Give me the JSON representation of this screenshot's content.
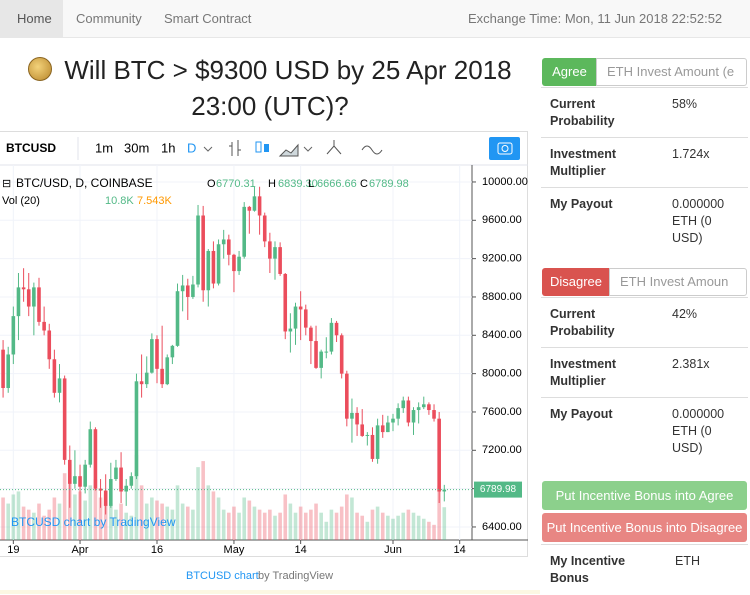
{
  "nav": {
    "items": [
      "Home",
      "Community",
      "Smart Contract"
    ],
    "exchange_time": "Exchange Time: Mon, 11 Jun 2018 22:52:52"
  },
  "question": "Will BTC > $9300 USD by 25 Apr 2018 23:00 (UTC)?",
  "widget": {
    "symbol": "BTCUSD",
    "intervals": [
      "1m",
      "30m",
      "1h",
      "D"
    ],
    "credit": "BTCUSD chart",
    "credit_by": "by TradingView"
  },
  "chart_data": {
    "type": "candlestick",
    "title": "BTC/USD, D, COINBASE",
    "ohlc_letters": [
      "O",
      "H",
      "L",
      "C"
    ],
    "last_labels": [
      "6770.31",
      "6839.30",
      "6666.66",
      "6789.98"
    ],
    "volume_title": "Vol (20)",
    "volume_labels": [
      "10.8K",
      "7.543K"
    ],
    "watermark": "BTCUSD chart by TradingView",
    "up_color": "#53b987",
    "down_color": "#eb4d5c",
    "candles": [
      [
        8250,
        8350,
        7750,
        7850
      ],
      [
        7850,
        8280,
        7800,
        8200
      ],
      [
        8200,
        8700,
        8100,
        8600
      ],
      [
        8600,
        9050,
        8350,
        8900
      ],
      [
        8900,
        9100,
        8750,
        8880
      ],
      [
        8880,
        9050,
        8600,
        8700
      ],
      [
        8700,
        8950,
        8400,
        8900
      ],
      [
        8900,
        9000,
        8500,
        8540
      ],
      [
        8540,
        8700,
        8400,
        8450
      ],
      [
        8450,
        8520,
        8050,
        8150
      ],
      [
        8150,
        8250,
        7750,
        7800
      ],
      [
        7800,
        8100,
        7700,
        7950
      ],
      [
        7950,
        7980,
        7050,
        7100
      ],
      [
        7100,
        7250,
        6600,
        6850
      ],
      [
        6850,
        7200,
        6800,
        6930
      ],
      [
        6930,
        7050,
        6450,
        6820
      ],
      [
        6820,
        7100,
        6750,
        7050
      ],
      [
        7050,
        7500,
        7020,
        7420
      ],
      [
        7420,
        7440,
        6780,
        6800
      ],
      [
        6800,
        6900,
        6600,
        6780
      ],
      [
        6780,
        6950,
        6530,
        6620
      ],
      [
        6620,
        7070,
        6600,
        6900
      ],
      [
        6900,
        7100,
        6880,
        7020
      ],
      [
        7020,
        7180,
        6650,
        6770
      ],
      [
        6770,
        6900,
        6620,
        6830
      ],
      [
        6830,
        6970,
        6800,
        6930
      ],
      [
        6930,
        8000,
        6900,
        7920
      ],
      [
        7920,
        8200,
        7750,
        7890
      ],
      [
        7890,
        8180,
        7850,
        8010
      ],
      [
        8010,
        8420,
        8000,
        8360
      ],
      [
        8360,
        8400,
        7900,
        8050
      ],
      [
        8050,
        8500,
        7850,
        7890
      ],
      [
        7890,
        8200,
        7880,
        8170
      ],
      [
        8170,
        8300,
        8100,
        8290
      ],
      [
        8290,
        8940,
        8280,
        8860
      ],
      [
        8860,
        9030,
        8650,
        8920
      ],
      [
        8920,
        8990,
        8560,
        8800
      ],
      [
        8800,
        9020,
        8780,
        8930
      ],
      [
        8930,
        9760,
        8900,
        9650
      ],
      [
        9650,
        9750,
        8750,
        8870
      ],
      [
        8870,
        9300,
        8700,
        9280
      ],
      [
        9280,
        9380,
        8890,
        8940
      ],
      [
        8940,
        9400,
        8920,
        9350
      ],
      [
        9350,
        9500,
        9200,
        9400
      ],
      [
        9400,
        9450,
        9130,
        9240
      ],
      [
        9240,
        9250,
        8850,
        9070
      ],
      [
        9070,
        9280,
        9030,
        9220
      ],
      [
        9220,
        9790,
        9200,
        9740
      ],
      [
        9740,
        9750,
        9460,
        9700
      ],
      [
        9700,
        9950,
        9690,
        9850
      ],
      [
        9850,
        9950,
        9450,
        9650
      ],
      [
        9650,
        9680,
        9320,
        9380
      ],
      [
        9380,
        9470,
        9050,
        9200
      ],
      [
        9200,
        9380,
        8980,
        9320
      ],
      [
        9320,
        9370,
        9020,
        9040
      ],
      [
        9040,
        9050,
        8360,
        8440
      ],
      [
        8440,
        8630,
        8220,
        8470
      ],
      [
        8470,
        8740,
        8300,
        8700
      ],
      [
        8700,
        8860,
        8350,
        8670
      ],
      [
        8670,
        8720,
        8400,
        8480
      ],
      [
        8480,
        8500,
        8100,
        8340
      ],
      [
        8340,
        8500,
        8050,
        8060
      ],
      [
        8060,
        8250,
        7950,
        8230
      ],
      [
        8230,
        8380,
        8160,
        8230
      ],
      [
        8230,
        8580,
        8200,
        8530
      ],
      [
        8530,
        8550,
        8330,
        8400
      ],
      [
        8400,
        8420,
        7950,
        8000
      ],
      [
        8000,
        8030,
        7450,
        7530
      ],
      [
        7530,
        7740,
        7280,
        7590
      ],
      [
        7590,
        7650,
        7350,
        7470
      ],
      [
        7470,
        7630,
        7340,
        7350
      ],
      [
        7350,
        7390,
        7250,
        7360
      ],
      [
        7360,
        7440,
        7080,
        7110
      ],
      [
        7110,
        7530,
        7060,
        7460
      ],
      [
        7460,
        7570,
        7330,
        7390
      ],
      [
        7390,
        7560,
        7390,
        7490
      ],
      [
        7490,
        7580,
        7400,
        7530
      ],
      [
        7530,
        7690,
        7460,
        7640
      ],
      [
        7640,
        7760,
        7590,
        7720
      ],
      [
        7720,
        7760,
        7450,
        7490
      ],
      [
        7490,
        7650,
        7360,
        7620
      ],
      [
        7620,
        7700,
        7480,
        7650
      ],
      [
        7650,
        7760,
        7630,
        7680
      ],
      [
        7680,
        7700,
        7570,
        7620
      ],
      [
        7620,
        7680,
        7500,
        7530
      ],
      [
        7530,
        7600,
        6650,
        6770
      ],
      [
        6770.31,
        6839.3,
        6666.66,
        6789.98
      ]
    ],
    "volume": [
      14,
      12,
      15,
      16,
      11,
      10,
      9,
      12,
      8,
      10,
      14,
      12,
      22,
      25,
      15,
      16,
      13,
      18,
      20,
      14,
      15,
      12,
      10,
      12,
      9,
      8,
      28,
      18,
      12,
      14,
      13,
      12,
      11,
      10,
      18,
      12,
      11,
      10,
      24,
      26,
      18,
      16,
      14,
      10,
      9,
      11,
      9,
      14,
      13,
      11,
      10,
      9,
      10,
      8,
      9,
      15,
      12,
      9,
      11,
      9,
      10,
      12,
      9,
      6,
      10,
      9,
      11,
      15,
      14,
      9,
      8,
      6,
      10,
      11,
      9,
      8,
      7,
      8,
      9,
      10,
      9,
      8,
      7,
      6,
      5,
      18,
      10.8
    ],
    "xlim": [
      -0.6,
      91.4
    ],
    "xticks": [
      {
        "value": 2,
        "label": "19"
      },
      {
        "value": 15,
        "label": "Apr"
      },
      {
        "value": 30,
        "label": "16"
      },
      {
        "value": 45,
        "label": "May"
      },
      {
        "value": 58,
        "label": "14"
      },
      {
        "value": 76,
        "label": "Jun"
      },
      {
        "value": 89,
        "label": "14"
      }
    ],
    "ylim": [
      6264,
      10177
    ],
    "yticks": [
      {
        "value": 6400,
        "label": "6400.00"
      },
      {
        "value": 6800,
        "label": "6800.00"
      },
      {
        "value": 7200,
        "label": "7200.00"
      },
      {
        "value": 7600,
        "label": "7600.00"
      },
      {
        "value": 8000,
        "label": "8000.00"
      },
      {
        "value": 8400,
        "label": "8400.00"
      },
      {
        "value": 8800,
        "label": "8800.00"
      },
      {
        "value": 9200,
        "label": "9200.00"
      },
      {
        "value": 9600,
        "label": "9600.00"
      },
      {
        "value": 10000,
        "label": "10000.00"
      }
    ],
    "grid": true
  },
  "agree": {
    "button": "Agree",
    "placeholder": "ETH Invest Amount (e",
    "rows": [
      [
        "Current Probability",
        "58%"
      ],
      [
        "Investment Multiplier",
        "1.724x"
      ],
      [
        "My Payout",
        "0.000000 ETH (0 USD)"
      ]
    ]
  },
  "disagree": {
    "button": "Disagree",
    "placeholder": "ETH Invest Amoun",
    "rows": [
      [
        "Current Probability",
        "42%"
      ],
      [
        "Investment Multiplier",
        "2.381x"
      ],
      [
        "My Payout",
        "0.000000 ETH (0 USD)"
      ]
    ]
  },
  "bonus_buttons": [
    "Put Incentive Bonus into Agree",
    "Put Incentive Bonus into Disagree"
  ],
  "bonus": {
    "label": "My Incentive Bonus",
    "value": "ETH"
  }
}
